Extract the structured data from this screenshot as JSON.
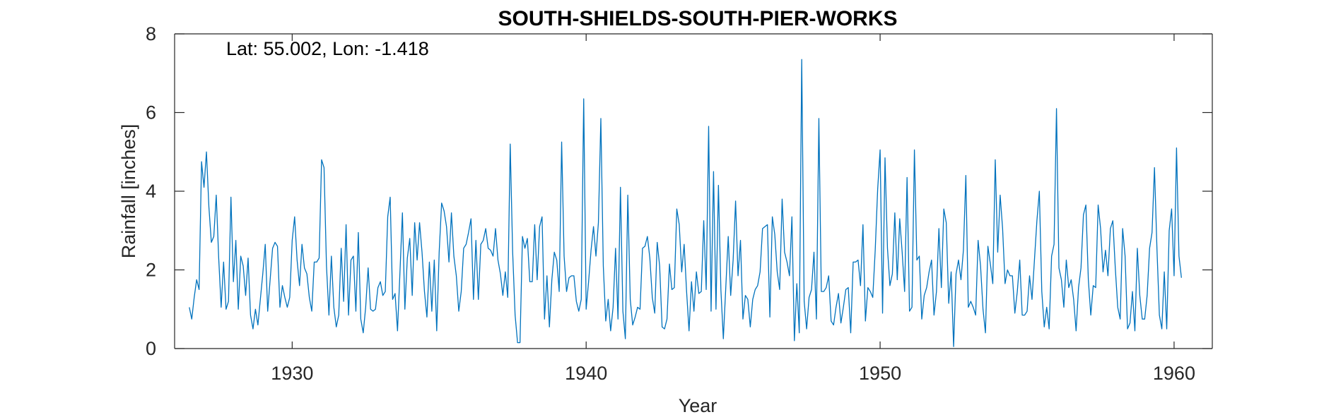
{
  "chart_data": {
    "type": "line",
    "title": "SOUTH-SHIELDS-SOUTH-PIER-WORKS",
    "xlabel": "Year",
    "ylabel": "Rainfall [inches]",
    "annotation": "Lat: 55.002, Lon: -1.418",
    "xlim": [
      1926.0,
      1961.3
    ],
    "ylim": [
      0,
      8
    ],
    "x_ticks": [
      1930,
      1940,
      1950,
      1960
    ],
    "y_ticks": [
      0,
      2,
      4,
      6,
      8
    ],
    "line_color": "#0072BD",
    "x_start": 1926.5,
    "x_step": 0.0833333,
    "series": [
      {
        "values": [
          1.05,
          0.75,
          1.3,
          1.75,
          1.5,
          4.75,
          4.1,
          5.0,
          3.6,
          2.7,
          2.85,
          3.9,
          2.3,
          1.05,
          2.2,
          1.0,
          1.2,
          3.85,
          1.7,
          2.75,
          1.0,
          2.35,
          2.1,
          1.35,
          2.3,
          0.85,
          0.5,
          1.0,
          0.6,
          1.25,
          1.9,
          2.65,
          0.95,
          1.75,
          2.55,
          2.7,
          2.6,
          1.05,
          1.6,
          1.3,
          1.05,
          1.3,
          2.75,
          3.35,
          2.25,
          1.6,
          2.65,
          2.05,
          1.9,
          1.3,
          0.95,
          2.2,
          2.2,
          2.3,
          4.8,
          4.6,
          2.1,
          0.85,
          2.35,
          1.05,
          0.55,
          0.85,
          2.55,
          1.2,
          3.15,
          0.85,
          2.25,
          2.35,
          0.95,
          2.95,
          0.75,
          0.4,
          1.05,
          2.05,
          1.0,
          0.95,
          1.0,
          1.55,
          1.7,
          1.35,
          1.45,
          3.35,
          3.85,
          1.25,
          1.4,
          0.45,
          1.95,
          3.45,
          1.0,
          2.3,
          2.8,
          1.35,
          3.2,
          2.25,
          3.2,
          2.45,
          1.45,
          0.8,
          2.2,
          0.95,
          2.25,
          0.45,
          2.45,
          3.7,
          3.5,
          3.1,
          2.2,
          3.45,
          2.35,
          1.85,
          0.95,
          1.45,
          2.55,
          2.65,
          2.95,
          3.3,
          1.25,
          2.75,
          1.25,
          2.65,
          2.75,
          3.05,
          2.55,
          2.5,
          2.35,
          3.05,
          2.25,
          1.9,
          1.35,
          1.95,
          1.3,
          5.2,
          2.45,
          0.85,
          0.15,
          0.15,
          2.85,
          2.55,
          2.8,
          1.7,
          1.7,
          3.15,
          1.75,
          3.1,
          3.35,
          0.75,
          1.85,
          0.55,
          1.75,
          2.45,
          2.25,
          1.45,
          5.25,
          2.35,
          1.45,
          1.8,
          1.85,
          1.85,
          1.2,
          0.95,
          1.25,
          6.35,
          1.0,
          1.7,
          2.5,
          3.1,
          2.35,
          3.2,
          5.85,
          2.1,
          0.7,
          1.25,
          0.45,
          1.05,
          2.55,
          0.75,
          4.1,
          0.95,
          0.25,
          3.9,
          1.25,
          0.6,
          0.8,
          1.05,
          1.0,
          2.55,
          2.6,
          2.85,
          2.3,
          1.3,
          0.9,
          2.7,
          2.1,
          0.55,
          0.5,
          0.75,
          2.15,
          1.5,
          1.55,
          3.55,
          3.15,
          1.95,
          2.65,
          1.45,
          0.45,
          1.7,
          0.95,
          1.95,
          1.4,
          1.45,
          3.25,
          1.5,
          5.65,
          0.95,
          4.5,
          1.0,
          4.15,
          1.5,
          0.25,
          1.55,
          2.85,
          1.35,
          2.25,
          3.75,
          1.85,
          2.75,
          0.75,
          1.35,
          1.25,
          0.55,
          1.25,
          1.5,
          1.6,
          1.95,
          3.05,
          3.1,
          3.15,
          0.8,
          3.35,
          2.9,
          1.95,
          1.5,
          3.8,
          2.45,
          2.2,
          1.85,
          3.35,
          0.2,
          1.65,
          0.4,
          7.35,
          1.2,
          0.5,
          1.3,
          1.5,
          2.45,
          0.75,
          5.85,
          1.45,
          1.45,
          1.55,
          1.85,
          0.7,
          0.6,
          1.05,
          1.4,
          0.65,
          1.05,
          1.5,
          1.55,
          0.4,
          2.2,
          2.2,
          2.25,
          1.6,
          3.15,
          0.7,
          1.55,
          1.45,
          1.3,
          2.5,
          4.05,
          5.05,
          0.9,
          4.85,
          2.55,
          1.6,
          1.9,
          3.45,
          1.75,
          3.3,
          2.45,
          1.45,
          4.35,
          0.95,
          1.05,
          5.05,
          2.25,
          2.35,
          0.75,
          1.35,
          1.55,
          1.95,
          2.25,
          0.85,
          1.45,
          3.05,
          1.55,
          3.55,
          3.2,
          1.15,
          1.95,
          0.05,
          1.9,
          2.25,
          1.75,
          2.5,
          4.4,
          1.05,
          1.2,
          1.05,
          0.85,
          2.75,
          2.1,
          1.0,
          0.4,
          2.6,
          2.15,
          1.65,
          4.8,
          2.45,
          3.9,
          3.05,
          1.65,
          2.0,
          1.85,
          1.85,
          0.9,
          1.45,
          2.25,
          0.85,
          0.85,
          0.95,
          1.85,
          1.25,
          2.25,
          3.25,
          4.0,
          1.45,
          0.55,
          1.05,
          0.5,
          2.35,
          2.65,
          6.1,
          2.05,
          1.75,
          1.05,
          2.25,
          1.55,
          1.75,
          1.25,
          0.45,
          1.55,
          2.05,
          3.4,
          3.65,
          1.75,
          0.85,
          1.6,
          1.55,
          3.65,
          3.05,
          1.95,
          2.5,
          1.85,
          3.05,
          3.25,
          2.05,
          1.05,
          0.75,
          3.05,
          2.35,
          0.5,
          0.65,
          1.45,
          0.45,
          2.55,
          1.35,
          0.75,
          0.75,
          1.35,
          2.55,
          2.95,
          4.6,
          2.55,
          0.85,
          0.5,
          1.95,
          0.5,
          3.0,
          3.55,
          1.85,
          5.1,
          2.35,
          1.8
        ]
      }
    ]
  }
}
